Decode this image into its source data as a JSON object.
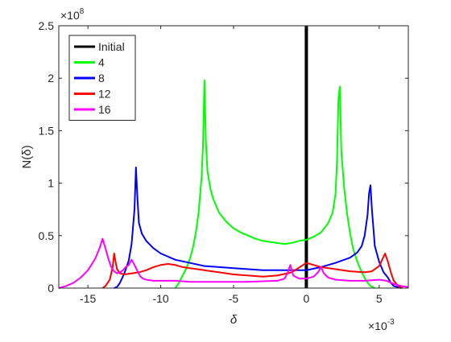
{
  "chart_data": {
    "type": "line",
    "title": "",
    "xlabel": "δ",
    "ylabel": "N(δ)",
    "x_multiplier": "×10-3",
    "y_multiplier": "×108",
    "xlim": [
      -0.017,
      0.007
    ],
    "ylim": [
      0,
      250000000
    ],
    "xticks": [
      -15,
      -10,
      -5,
      0,
      5
    ],
    "yticks": [
      0,
      0.5,
      1,
      1.5,
      2,
      2.5
    ],
    "grid": false,
    "legend": {
      "placement": "top-left"
    },
    "series": [
      {
        "name": "Initial",
        "color": "#000000",
        "x": [
          0,
          0
        ],
        "y": [
          0,
          250000000
        ]
      },
      {
        "name": "4",
        "color": "#00ff00",
        "x": [
          -0.009,
          -0.0088,
          -0.0085,
          -0.0082,
          -0.008,
          -0.0078,
          -0.0076,
          -0.0074,
          -0.0072,
          -0.0071,
          -0.007,
          -0.0069,
          -0.0068,
          -0.0066,
          -0.0064,
          -0.006,
          -0.0055,
          -0.005,
          -0.0045,
          -0.004,
          -0.0035,
          -0.003,
          -0.0025,
          -0.002,
          -0.0015,
          -0.001,
          -0.0005,
          0,
          0.0005,
          0.001,
          0.0015,
          0.0018,
          0.002,
          0.0021,
          0.0022,
          0.0023,
          0.0024,
          0.0026,
          0.0028,
          0.003,
          0.0032,
          0.0035,
          0.0038,
          0.0041,
          0.0044,
          0.0047
        ],
        "y": [
          0,
          4000000,
          12000000,
          20000000,
          28000000,
          38000000,
          52000000,
          72000000,
          105000000,
          135000000,
          198000000,
          140000000,
          112000000,
          95000000,
          85000000,
          72000000,
          63000000,
          57000000,
          53000000,
          50000000,
          47000000,
          45000000,
          44000000,
          43000000,
          42000000,
          43000000,
          45000000,
          46000000,
          49000000,
          53000000,
          62000000,
          72000000,
          90000000,
          120000000,
          180000000,
          192000000,
          130000000,
          95000000,
          70000000,
          52000000,
          38000000,
          25000000,
          15000000,
          7000000,
          2000000,
          0
        ]
      },
      {
        "name": "8",
        "color": "#0000ff",
        "x": [
          -0.0132,
          -0.013,
          -0.0128,
          -0.0125,
          -0.0122,
          -0.012,
          -0.0118,
          -0.0117,
          -0.0116,
          -0.0115,
          -0.0113,
          -0.011,
          -0.0105,
          -0.01,
          -0.009,
          -0.008,
          -0.007,
          -0.006,
          -0.005,
          -0.004,
          -0.003,
          -0.002,
          -0.001,
          0,
          0.001,
          0.002,
          0.003,
          0.0035,
          0.0038,
          0.004,
          0.0042,
          0.0043,
          0.0044,
          0.0045,
          0.0047,
          0.005,
          0.0053,
          0.0056,
          0.0058,
          0.006,
          0.0065
        ],
        "y": [
          0,
          1000000,
          5000000,
          14000000,
          26000000,
          42000000,
          75000000,
          115000000,
          85000000,
          62000000,
          52000000,
          45000000,
          38000000,
          33000000,
          27000000,
          24000000,
          21000000,
          20000000,
          19000000,
          18000000,
          17000000,
          17000000,
          17000000,
          17000000,
          20000000,
          24000000,
          29000000,
          34000000,
          40000000,
          50000000,
          70000000,
          90000000,
          98000000,
          75000000,
          40000000,
          25000000,
          15000000,
          10000000,
          5000000,
          2000000,
          0
        ]
      },
      {
        "name": "12",
        "color": "#ff0000",
        "x": [
          -0.014,
          -0.0138,
          -0.0135,
          -0.0133,
          -0.0132,
          -0.0131,
          -0.013,
          -0.0128,
          -0.0125,
          -0.012,
          -0.0115,
          -0.011,
          -0.0105,
          -0.01,
          -0.0095,
          -0.009,
          -0.0085,
          -0.008,
          -0.007,
          -0.006,
          -0.005,
          -0.004,
          -0.003,
          -0.002,
          -0.001,
          0,
          0.0005,
          0.001,
          0.002,
          0.003,
          0.004,
          0.0045,
          0.005,
          0.0052,
          0.0054,
          0.0056,
          0.0058,
          0.006,
          0.0063,
          0.0066
        ],
        "y": [
          0,
          2000000,
          8000000,
          20000000,
          33000000,
          25000000,
          18000000,
          14000000,
          13000000,
          14000000,
          15000000,
          17000000,
          20000000,
          22000000,
          23000000,
          22000000,
          20000000,
          19000000,
          17000000,
          15000000,
          13000000,
          12000000,
          11000000,
          12000000,
          15000000,
          24000000,
          22000000,
          20000000,
          18000000,
          16000000,
          15000000,
          16000000,
          21000000,
          27000000,
          33000000,
          25000000,
          15000000,
          7000000,
          2000000,
          0
        ]
      },
      {
        "name": "16",
        "color": "#ff00ff",
        "x": [
          -0.017,
          -0.0165,
          -0.016,
          -0.0155,
          -0.015,
          -0.0145,
          -0.0142,
          -0.014,
          -0.0138,
          -0.0136,
          -0.0134,
          -0.0132,
          -0.013,
          -0.0128,
          -0.0126,
          -0.0124,
          -0.0122,
          -0.012,
          -0.0118,
          -0.0116,
          -0.0114,
          -0.0112,
          -0.011,
          -0.0105,
          -0.01,
          -0.009,
          -0.008,
          -0.007,
          -0.006,
          -0.005,
          -0.004,
          -0.003,
          -0.002,
          -0.0015,
          -0.0013,
          -0.0011,
          -0.0009,
          -0.0005,
          0,
          0.0005,
          0.0008,
          0.001,
          0.0012,
          0.0015,
          0.002,
          0.003,
          0.004,
          0.005,
          0.0055,
          0.006,
          0.0065,
          0.007
        ],
        "y": [
          0,
          2000000,
          5000000,
          10000000,
          17000000,
          28000000,
          38000000,
          47000000,
          38000000,
          28000000,
          20000000,
          16000000,
          14000000,
          15000000,
          17000000,
          20000000,
          22000000,
          27000000,
          22000000,
          16000000,
          11000000,
          9000000,
          8000000,
          7000000,
          7000000,
          7000000,
          6000000,
          6000000,
          6000000,
          6000000,
          6000000,
          6500000,
          7000000,
          9000000,
          14000000,
          22000000,
          12000000,
          9000000,
          9000000,
          11000000,
          15000000,
          20000000,
          14000000,
          10000000,
          8000000,
          7000000,
          7000000,
          8000000,
          7000000,
          4000000,
          2000000,
          1000000
        ]
      }
    ]
  }
}
